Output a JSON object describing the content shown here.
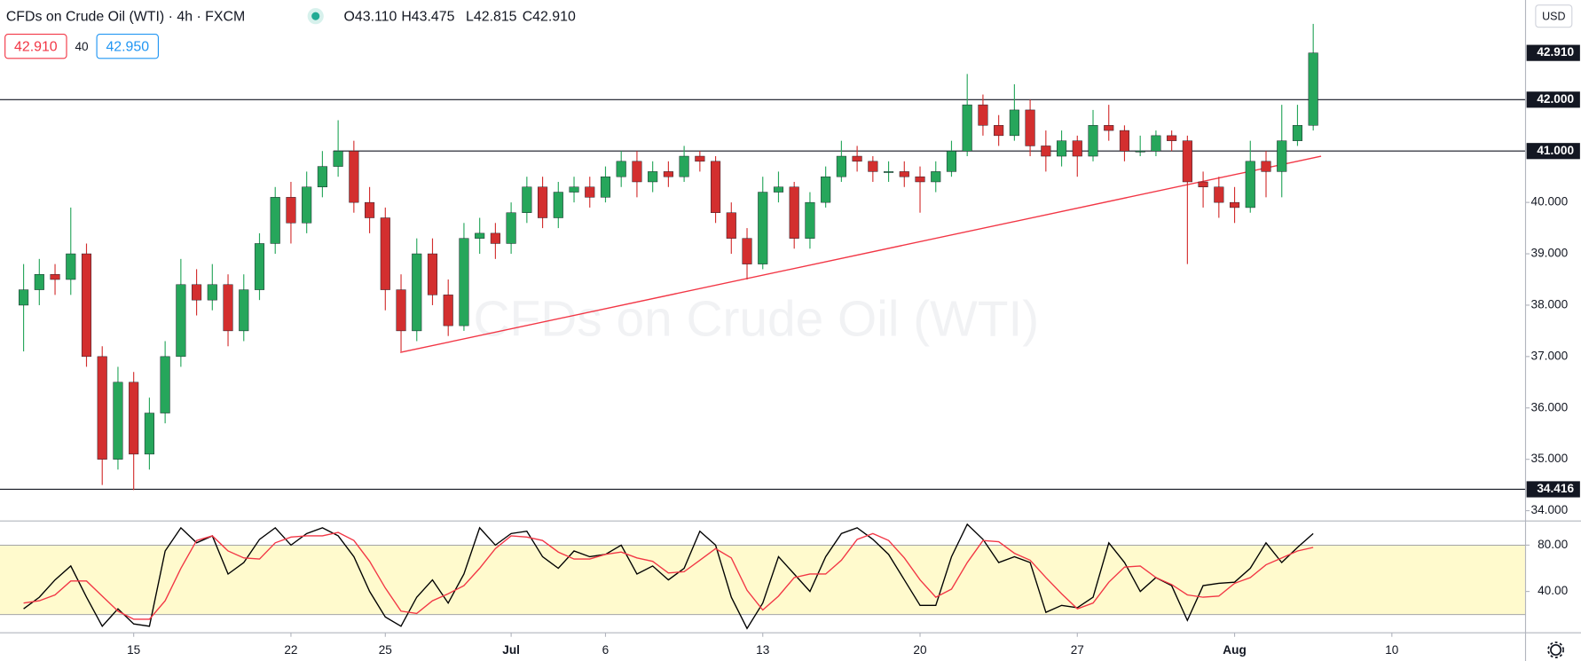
{
  "header": {
    "symbol": "CFDs on Crude Oil (WTI) · 4h · FXCM",
    "ohlc": [
      "O43.110",
      "H43.475",
      "L42.815",
      "C42.910"
    ],
    "bid": "42.910",
    "spread": "40",
    "ask": "42.950",
    "currency": "USD"
  },
  "watermark": "CFDs on Crude Oil (WTI)",
  "chart_data": [
    {
      "type": "candlestick",
      "up_color": "#26a65b",
      "down_color": "#d32f2f",
      "open": [
        38.0,
        38.3,
        38.6,
        38.5,
        39.0,
        37.0,
        35.0,
        36.5,
        35.1,
        35.9,
        37.0,
        38.4,
        38.1,
        38.4,
        37.5,
        38.3,
        39.2,
        40.1,
        39.6,
        40.3,
        40.7,
        41.0,
        40.0,
        39.7,
        38.3,
        37.5,
        39.0,
        38.2,
        37.6,
        39.3,
        39.4,
        39.2,
        39.8,
        40.3,
        39.7,
        40.2,
        40.3,
        40.1,
        40.5,
        40.8,
        40.4,
        40.6,
        40.5,
        40.9,
        40.8,
        39.8,
        39.3,
        38.8,
        40.2,
        40.3,
        39.3,
        40.0,
        40.5,
        40.9,
        40.8,
        40.6,
        40.6,
        40.5,
        40.4,
        40.6,
        41.0,
        41.9,
        41.5,
        41.3,
        41.8,
        41.1,
        40.9,
        41.2,
        40.9,
        41.5,
        41.4,
        41.0,
        41.0,
        41.3,
        41.2,
        40.4,
        40.3,
        40.0,
        39.9,
        40.8,
        40.6,
        41.2,
        41.5
      ],
      "high": [
        38.8,
        38.9,
        38.8,
        39.9,
        39.2,
        37.2,
        36.8,
        36.7,
        36.2,
        37.3,
        38.9,
        38.7,
        38.8,
        38.6,
        38.6,
        39.4,
        40.3,
        40.4,
        40.6,
        41.0,
        41.6,
        41.2,
        40.3,
        39.9,
        38.6,
        39.3,
        39.3,
        38.5,
        39.6,
        39.7,
        39.6,
        40.0,
        40.5,
        40.5,
        40.4,
        40.5,
        40.5,
        40.7,
        41.0,
        41.0,
        40.8,
        40.8,
        41.1,
        41.0,
        40.9,
        40.0,
        39.5,
        40.5,
        40.6,
        40.4,
        40.2,
        40.7,
        41.2,
        41.1,
        40.9,
        40.8,
        40.8,
        40.7,
        40.8,
        41.2,
        42.5,
        42.1,
        41.7,
        42.3,
        42.0,
        41.4,
        41.4,
        41.3,
        41.8,
        41.9,
        41.5,
        41.3,
        41.4,
        41.4,
        41.3,
        40.6,
        40.5,
        40.3,
        41.2,
        41.0,
        41.9,
        41.9,
        43.475
      ],
      "low": [
        37.1,
        38.0,
        38.2,
        38.2,
        36.8,
        34.5,
        34.8,
        34.4,
        34.8,
        35.7,
        36.8,
        37.8,
        37.9,
        37.2,
        37.3,
        38.1,
        39.0,
        39.2,
        39.4,
        40.1,
        40.5,
        39.8,
        39.4,
        37.9,
        37.1,
        37.3,
        38.0,
        37.4,
        37.5,
        39.0,
        38.9,
        39.0,
        39.6,
        39.5,
        39.5,
        40.0,
        39.9,
        40.0,
        40.3,
        40.1,
        40.2,
        40.3,
        40.4,
        40.6,
        39.6,
        39.0,
        38.5,
        38.7,
        40.0,
        39.1,
        39.1,
        39.9,
        40.4,
        40.6,
        40.4,
        40.4,
        40.3,
        39.8,
        40.2,
        40.5,
        40.9,
        41.3,
        41.1,
        41.2,
        40.9,
        40.6,
        40.7,
        40.5,
        40.8,
        41.2,
        40.8,
        40.9,
        40.9,
        41.0,
        38.8,
        39.9,
        39.7,
        39.6,
        39.8,
        40.1,
        40.1,
        41.1,
        41.4
      ],
      "close": [
        38.3,
        38.6,
        38.5,
        39.0,
        37.0,
        35.0,
        36.5,
        35.1,
        35.9,
        37.0,
        38.4,
        38.1,
        38.4,
        37.5,
        38.3,
        39.2,
        40.1,
        39.6,
        40.3,
        40.7,
        41.0,
        40.0,
        39.7,
        38.3,
        37.5,
        39.0,
        38.2,
        37.6,
        39.3,
        39.4,
        39.2,
        39.8,
        40.3,
        39.7,
        40.2,
        40.3,
        40.1,
        40.5,
        40.8,
        40.4,
        40.6,
        40.5,
        40.9,
        40.8,
        39.8,
        39.3,
        38.8,
        40.2,
        40.3,
        39.3,
        40.0,
        40.5,
        40.9,
        40.8,
        40.6,
        40.6,
        40.5,
        40.4,
        40.6,
        41.0,
        41.9,
        41.5,
        41.3,
        41.8,
        41.1,
        40.9,
        41.2,
        40.9,
        41.5,
        41.4,
        41.0,
        41.0,
        41.3,
        41.2,
        40.4,
        40.3,
        40.0,
        39.9,
        40.8,
        40.6,
        41.2,
        41.5,
        42.91
      ],
      "xlim": [
        -1.5,
        95.5
      ],
      "xticks": [
        {
          "value": 7,
          "label": "15"
        },
        {
          "value": 17,
          "label": "22"
        },
        {
          "value": 23,
          "label": "25"
        },
        {
          "value": 31,
          "label": "Jul"
        },
        {
          "value": 37,
          "label": "6"
        },
        {
          "value": 47,
          "label": "13"
        },
        {
          "value": 57,
          "label": "20"
        },
        {
          "value": 67,
          "label": "27"
        },
        {
          "value": 77,
          "label": "Aug"
        },
        {
          "value": 87,
          "label": "10"
        }
      ],
      "ylim": [
        33.8,
        43.94
      ],
      "yticks": [
        {
          "value": 34,
          "label": "34.000"
        },
        {
          "value": 35,
          "label": "35.000"
        },
        {
          "value": 36,
          "label": "36.000"
        },
        {
          "value": 37,
          "label": "37.000"
        },
        {
          "value": 38,
          "label": "38.000"
        },
        {
          "value": 39,
          "label": "39.000"
        },
        {
          "value": 40,
          "label": "40.000"
        }
      ],
      "hlines": [
        {
          "value": 42,
          "label": "42.000",
          "start": -1.5
        },
        {
          "value": 41,
          "label": "41.000",
          "start": 19.7
        },
        {
          "value": 34.416,
          "label": "34.416",
          "start": -1.5
        }
      ],
      "last_price": {
        "value": 42.91,
        "label": "42.910"
      },
      "trendline": {
        "x": [
          23.95,
          82.5
        ],
        "y": [
          37.08,
          40.9
        ],
        "color": "#f23645"
      }
    },
    {
      "type": "line",
      "xlim": [
        -1.5,
        95.5
      ],
      "ylim": [
        4.3,
        100.9
      ],
      "yticks": [
        {
          "value": 40,
          "label": "40.00"
        },
        {
          "value": 80,
          "label": "80.00"
        }
      ],
      "band": [
        20,
        80
      ],
      "band_color": "#fffacd",
      "series": [
        {
          "color": "#000000",
          "values": [
            25,
            35,
            50,
            62,
            35,
            10,
            25,
            12,
            10,
            75,
            95,
            82,
            88,
            55,
            65,
            85,
            95,
            80,
            90,
            95,
            88,
            70,
            40,
            18,
            10,
            35,
            50,
            30,
            55,
            95,
            80,
            90,
            92,
            70,
            60,
            75,
            70,
            72,
            80,
            55,
            62,
            50,
            60,
            92,
            80,
            35,
            8,
            30,
            70,
            55,
            40,
            70,
            90,
            95,
            85,
            72,
            50,
            28,
            28,
            70,
            98,
            85,
            65,
            70,
            65,
            22,
            28,
            26,
            35,
            82,
            65,
            40,
            52,
            45,
            15,
            45,
            47,
            48,
            60,
            82,
            65,
            78,
            90
          ]
        },
        {
          "color": "#f23645",
          "values": [
            30,
            32,
            37,
            49,
            49,
            36,
            23,
            16,
            16,
            32,
            60,
            84,
            88,
            75,
            69,
            68,
            82,
            87,
            88,
            88,
            91,
            84,
            66,
            43,
            23,
            21,
            32,
            38,
            45,
            60,
            77,
            88,
            87,
            84,
            74,
            68,
            68,
            72,
            74,
            69,
            66,
            56,
            57,
            67,
            77,
            69,
            41,
            24,
            36,
            52,
            55,
            55,
            67,
            85,
            90,
            84,
            69,
            50,
            35,
            42,
            65,
            84,
            83,
            73,
            67,
            52,
            38,
            25,
            30,
            48,
            61,
            62,
            52,
            46,
            37,
            35,
            36,
            47,
            52,
            63,
            69,
            75,
            78
          ]
        }
      ]
    }
  ]
}
